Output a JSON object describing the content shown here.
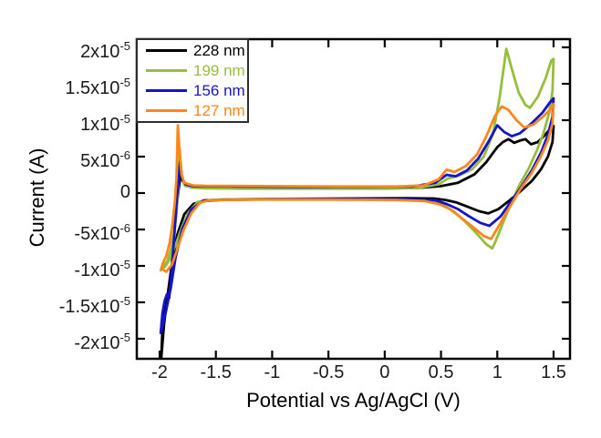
{
  "chart_data": {
    "type": "line",
    "title": "",
    "xlabel": "Potential vs Ag/AgCl (V)",
    "ylabel": "Current (A)",
    "x_unit": "V",
    "y_unit": "A",
    "note": "cyclic voltammogram; series point currents are in units of 1e-6 A",
    "grid": false,
    "legend_position": "upper left",
    "xlim": [
      -2.2025,
      1.6459
    ],
    "ylim_microamps": [
      -22.75,
      21.125
    ],
    "x_ticks": [
      {
        "v": -2,
        "label": "-2"
      },
      {
        "v": -1.5,
        "label": "-1.5"
      },
      {
        "v": -1,
        "label": "-1"
      },
      {
        "v": -0.5,
        "label": "-0.5"
      },
      {
        "v": 0,
        "label": "0"
      },
      {
        "v": 0.5,
        "label": "0.5"
      },
      {
        "v": 1,
        "label": "1"
      },
      {
        "v": 1.5,
        "label": "1.5"
      }
    ],
    "y_ticks": [
      {
        "v": 20,
        "label": "2x10^-5"
      },
      {
        "v": 15,
        "label": "1.5x10^-5"
      },
      {
        "v": 10,
        "label": "1x10^-5"
      },
      {
        "v": 5,
        "label": "5x10^-6"
      },
      {
        "v": 0,
        "label": "0"
      },
      {
        "v": -5,
        "label": "-5x10^-6"
      },
      {
        "v": -10,
        "label": "-1x10^-5"
      },
      {
        "v": -15,
        "label": "-1.5x10^-5"
      },
      {
        "v": -20,
        "label": "-2x10^-5"
      }
    ],
    "series": [
      {
        "name": "228 nm",
        "color": "#000000",
        "points": [
          [
            -1.985,
            -22.7
          ],
          [
            -1.97,
            -17
          ],
          [
            -1.95,
            -14.6
          ],
          [
            -1.93,
            -14
          ],
          [
            -1.915,
            -14.4
          ],
          [
            -1.9,
            -12
          ],
          [
            -1.88,
            -7.5
          ],
          [
            -1.86,
            -3.5
          ],
          [
            -1.84,
            -0.8
          ],
          [
            -1.825,
            1.2
          ],
          [
            -1.81,
            2.7
          ],
          [
            -1.795,
            1.7
          ],
          [
            -1.77,
            1
          ],
          [
            -1.7,
            0.8
          ],
          [
            -1.5,
            0.75
          ],
          [
            -1,
            0.7
          ],
          [
            -0.5,
            0.65
          ],
          [
            0,
            0.65
          ],
          [
            0.3,
            0.7
          ],
          [
            0.5,
            0.95
          ],
          [
            0.65,
            1.4
          ],
          [
            0.8,
            2.6
          ],
          [
            0.9,
            4.2
          ],
          [
            1,
            6.3
          ],
          [
            1.05,
            7
          ],
          [
            1.1,
            7.4
          ],
          [
            1.15,
            6.9
          ],
          [
            1.2,
            7.2
          ],
          [
            1.25,
            7.4
          ],
          [
            1.3,
            6.7
          ],
          [
            1.36,
            7
          ],
          [
            1.42,
            7.9
          ],
          [
            1.47,
            8.8
          ],
          [
            1.5,
            9.2
          ],
          [
            1.49,
            7
          ],
          [
            1.45,
            5
          ],
          [
            1.39,
            3.3
          ],
          [
            1.31,
            1.7
          ],
          [
            1.21,
            0.3
          ],
          [
            1.11,
            -1
          ],
          [
            1.01,
            -2.2
          ],
          [
            0.92,
            -2.8
          ],
          [
            0.84,
            -2.5
          ],
          [
            0.74,
            -1.9
          ],
          [
            0.64,
            -1.3
          ],
          [
            0.54,
            -0.95
          ],
          [
            0.44,
            -0.75
          ],
          [
            0.2,
            -0.7
          ],
          [
            -0.3,
            -0.75
          ],
          [
            -0.9,
            -0.8
          ],
          [
            -1.4,
            -0.9
          ],
          [
            -1.6,
            -1
          ],
          [
            -1.7,
            -1.5
          ],
          [
            -1.78,
            -2.9
          ],
          [
            -1.84,
            -5.6
          ],
          [
            -1.89,
            -9.6
          ],
          [
            -1.93,
            -14.2
          ],
          [
            -1.96,
            -18
          ],
          [
            -1.985,
            -22.7
          ]
        ]
      },
      {
        "name": "199 nm",
        "color": "#96BE3C",
        "points": [
          [
            -1.99,
            -10.6
          ],
          [
            -1.96,
            -10
          ],
          [
            -1.93,
            -9.3
          ],
          [
            -1.9,
            -7.8
          ],
          [
            -1.87,
            -5.4
          ],
          [
            -1.85,
            -2.8
          ],
          [
            -1.835,
            0.5
          ],
          [
            -1.822,
            6.1
          ],
          [
            -1.805,
            2.6
          ],
          [
            -1.78,
            1.1
          ],
          [
            -1.72,
            0.75
          ],
          [
            -1.6,
            0.65
          ],
          [
            -1.2,
            0.6
          ],
          [
            -0.6,
            0.6
          ],
          [
            0,
            0.6
          ],
          [
            0.3,
            0.7
          ],
          [
            0.48,
            1.2
          ],
          [
            0.56,
            2
          ],
          [
            0.66,
            2.4
          ],
          [
            0.78,
            3.3
          ],
          [
            0.88,
            5
          ],
          [
            0.96,
            8
          ],
          [
            1.02,
            13
          ],
          [
            1.08,
            19.8
          ],
          [
            1.13,
            17
          ],
          [
            1.19,
            13.8
          ],
          [
            1.25,
            12.1
          ],
          [
            1.29,
            11.7
          ],
          [
            1.36,
            13.2
          ],
          [
            1.43,
            15.8
          ],
          [
            1.48,
            18.2
          ],
          [
            1.5,
            18.4
          ],
          [
            1.49,
            14
          ],
          [
            1.46,
            11
          ],
          [
            1.41,
            8.2
          ],
          [
            1.35,
            5.8
          ],
          [
            1.28,
            3.4
          ],
          [
            1.2,
            1.2
          ],
          [
            1.12,
            -1.5
          ],
          [
            1.04,
            -4.5
          ],
          [
            0.98,
            -6.8
          ],
          [
            0.955,
            -7.6
          ],
          [
            0.9,
            -7
          ],
          [
            0.82,
            -5.6
          ],
          [
            0.72,
            -4
          ],
          [
            0.62,
            -2.6
          ],
          [
            0.52,
            -1.6
          ],
          [
            0.42,
            -1.1
          ],
          [
            0.2,
            -0.9
          ],
          [
            -0.4,
            -0.8
          ],
          [
            -1.1,
            -0.8
          ],
          [
            -1.5,
            -0.9
          ],
          [
            -1.66,
            -1.2
          ],
          [
            -1.74,
            -2.6
          ],
          [
            -1.8,
            -4.6
          ],
          [
            -1.85,
            -6.8
          ],
          [
            -1.9,
            -8.8
          ],
          [
            -1.95,
            -10.1
          ],
          [
            -1.99,
            -10.6
          ]
        ]
      },
      {
        "name": "156 nm",
        "color": "#1414CD",
        "points": [
          [
            -1.99,
            -19.2
          ],
          [
            -1.975,
            -16.5
          ],
          [
            -1.955,
            -14.8
          ],
          [
            -1.935,
            -13.9
          ],
          [
            -1.92,
            -14.4
          ],
          [
            -1.9,
            -12.5
          ],
          [
            -1.88,
            -8
          ],
          [
            -1.86,
            -3.8
          ],
          [
            -1.845,
            -0.5
          ],
          [
            -1.83,
            2
          ],
          [
            -1.818,
            4.4
          ],
          [
            -1.8,
            2
          ],
          [
            -1.77,
            1.2
          ],
          [
            -1.7,
            0.95
          ],
          [
            -1.3,
            0.9
          ],
          [
            -0.8,
            0.85
          ],
          [
            -0.2,
            0.85
          ],
          [
            0.25,
            0.9
          ],
          [
            0.45,
            1.4
          ],
          [
            0.55,
            2.5
          ],
          [
            0.63,
            2.3
          ],
          [
            0.73,
            3.1
          ],
          [
            0.83,
            4.7
          ],
          [
            0.92,
            7
          ],
          [
            1,
            9.3
          ],
          [
            1.06,
            8.4
          ],
          [
            1.13,
            7.8
          ],
          [
            1.2,
            8.2
          ],
          [
            1.3,
            9.5
          ],
          [
            1.4,
            11
          ],
          [
            1.47,
            12.5
          ],
          [
            1.5,
            13
          ],
          [
            1.49,
            10.5
          ],
          [
            1.45,
            8
          ],
          [
            1.39,
            5.6
          ],
          [
            1.31,
            3.2
          ],
          [
            1.22,
            1
          ],
          [
            1.12,
            -1.2
          ],
          [
            1.03,
            -3.2
          ],
          [
            0.93,
            -4.5
          ],
          [
            0.85,
            -4.1
          ],
          [
            0.75,
            -3.2
          ],
          [
            0.65,
            -2.2
          ],
          [
            0.55,
            -1.5
          ],
          [
            0.45,
            -1
          ],
          [
            0.2,
            -0.85
          ],
          [
            -0.4,
            -0.8
          ],
          [
            -1,
            -0.85
          ],
          [
            -1.45,
            -0.95
          ],
          [
            -1.62,
            -1.1
          ],
          [
            -1.72,
            -2.3
          ],
          [
            -1.8,
            -5
          ],
          [
            -1.86,
            -9
          ],
          [
            -1.9,
            -13
          ],
          [
            -1.94,
            -16
          ],
          [
            -1.97,
            -18
          ],
          [
            -1.99,
            -19.2
          ]
        ]
      },
      {
        "name": "127 nm",
        "color": "#FF871A",
        "points": [
          [
            -1.985,
            -10.4
          ],
          [
            -1.97,
            -9.6
          ],
          [
            -1.94,
            -8.6
          ],
          [
            -1.91,
            -6.8
          ],
          [
            -1.885,
            -4.2
          ],
          [
            -1.865,
            -1.2
          ],
          [
            -1.85,
            2
          ],
          [
            -1.838,
            9.3
          ],
          [
            -1.822,
            5.5
          ],
          [
            -1.805,
            2.6
          ],
          [
            -1.78,
            1.4
          ],
          [
            -1.7,
            1.05
          ],
          [
            -1.6,
            1
          ],
          [
            -1,
            0.95
          ],
          [
            -0.4,
            0.9
          ],
          [
            0.1,
            0.9
          ],
          [
            0.35,
            1.05
          ],
          [
            0.48,
            1.9
          ],
          [
            0.55,
            3.2
          ],
          [
            0.62,
            2.9
          ],
          [
            0.72,
            3.7
          ],
          [
            0.82,
            5.3
          ],
          [
            0.9,
            7.7
          ],
          [
            0.98,
            10.6
          ],
          [
            1.04,
            11.9
          ],
          [
            1.1,
            11.4
          ],
          [
            1.17,
            10
          ],
          [
            1.24,
            9
          ],
          [
            1.32,
            9.4
          ],
          [
            1.4,
            10.4
          ],
          [
            1.46,
            11.3
          ],
          [
            1.5,
            12.2
          ],
          [
            1.49,
            9.5
          ],
          [
            1.45,
            7.2
          ],
          [
            1.38,
            4.8
          ],
          [
            1.3,
            2.6
          ],
          [
            1.2,
            0.4
          ],
          [
            1.1,
            -2.2
          ],
          [
            1.01,
            -4.6
          ],
          [
            0.945,
            -6.3
          ],
          [
            0.88,
            -5.9
          ],
          [
            0.78,
            -4.6
          ],
          [
            0.68,
            -3.4
          ],
          [
            0.58,
            -2.2
          ],
          [
            0.48,
            -1.5
          ],
          [
            0.35,
            -1.1
          ],
          [
            0.1,
            -0.95
          ],
          [
            -0.5,
            -0.9
          ],
          [
            -1.2,
            -0.9
          ],
          [
            -1.56,
            -1
          ],
          [
            -1.64,
            -1.3
          ],
          [
            -1.72,
            -2.8
          ],
          [
            -1.79,
            -5.2
          ],
          [
            -1.84,
            -7.6
          ],
          [
            -1.89,
            -9.8
          ],
          [
            -1.94,
            -10.8
          ],
          [
            -1.985,
            -10.4
          ]
        ]
      }
    ]
  }
}
